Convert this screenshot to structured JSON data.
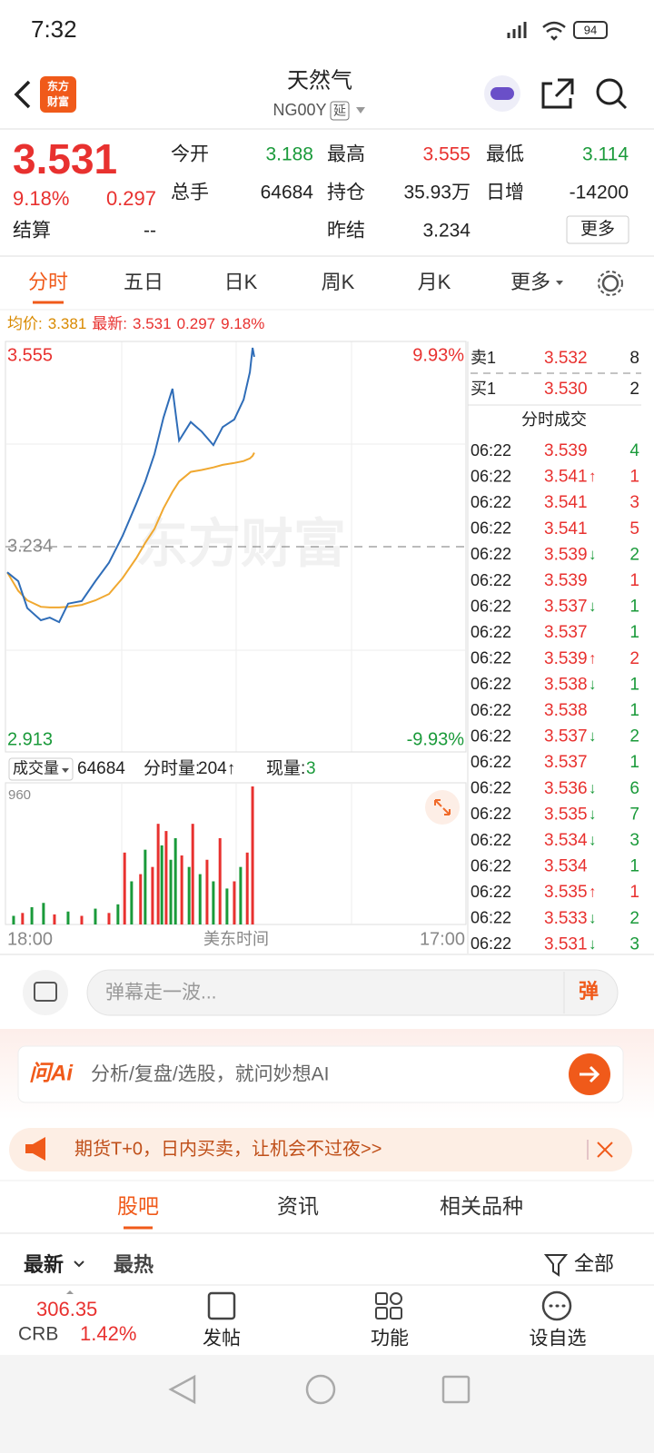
{
  "status_bar": {
    "time": "7:32",
    "battery": "94"
  },
  "header": {
    "logo_lines": [
      "东方",
      "财富"
    ],
    "title": "天然气",
    "code": "NG00Y",
    "badge": "延"
  },
  "quote": {
    "price": "3.531",
    "change_pct": "9.18%",
    "change": "0.297",
    "fields": [
      {
        "label": "今开",
        "value": "3.188",
        "color": "#1a9a3a"
      },
      {
        "label": "最高",
        "value": "3.555",
        "color": "#e8312f"
      },
      {
        "label": "最低",
        "value": "3.114",
        "color": "#1a9a3a"
      },
      {
        "label": "总手",
        "value": "64684",
        "color": "#222222"
      },
      {
        "label": "持仓",
        "value": "35.93万",
        "color": "#222222"
      },
      {
        "label": "日增",
        "value": "-14200",
        "color": "#222222"
      },
      {
        "label": "结算",
        "value": "--",
        "color": "#222222"
      },
      {
        "label": "昨结",
        "value": "3.234",
        "color": "#222222"
      }
    ],
    "more": "更多"
  },
  "tabs": [
    "分时",
    "五日",
    "日K",
    "周K",
    "月K",
    "更多"
  ],
  "info_line": {
    "avg_label": "均价:",
    "avg": "3.381",
    "latest_label": "最新:",
    "latest": "3.531",
    "change": "0.297",
    "change_pct": "9.18%"
  },
  "intraday": {
    "watermark": "东方财富",
    "ylim": [
      2.913,
      3.555
    ],
    "yticks": [
      3.555,
      3.234,
      2.913
    ],
    "top_pct": "9.93%",
    "bottom_pct": "-9.93%",
    "xlim": [
      0,
      1380
    ],
    "xlabels": [
      "18:00",
      "美东时间",
      "17:00"
    ],
    "x": [
      0,
      33,
      60,
      101,
      128,
      156,
      183,
      224,
      265,
      306,
      347,
      388,
      415,
      443,
      470,
      497,
      517,
      552,
      585,
      620,
      648,
      683,
      711,
      730,
      738,
      743
    ],
    "price": [
      3.194,
      3.18,
      3.138,
      3.119,
      3.123,
      3.116,
      3.145,
      3.149,
      3.18,
      3.209,
      3.251,
      3.301,
      3.336,
      3.379,
      3.436,
      3.481,
      3.4,
      3.429,
      3.414,
      3.393,
      3.421,
      3.433,
      3.464,
      3.507,
      3.545,
      3.531
    ],
    "avg": [
      3.194,
      3.165,
      3.15,
      3.14,
      3.139,
      3.139,
      3.14,
      3.143,
      3.15,
      3.16,
      3.185,
      3.216,
      3.24,
      3.262,
      3.294,
      3.32,
      3.336,
      3.351,
      3.354,
      3.358,
      3.362,
      3.365,
      3.368,
      3.372,
      3.376,
      3.381
    ],
    "price_color": "#2f6db8",
    "avg_color": "#f0a830"
  },
  "volume": {
    "label": "成交量",
    "total": "64684",
    "tick_volume_label": "分时量:",
    "tick_volume": "204↑",
    "current_label": "现量:",
    "current": "3",
    "ylim": [
      0,
      960
    ],
    "yticks": [
      960
    ],
    "x": [
      19,
      46,
      74,
      109,
      142,
      183,
      224,
      265,
      306,
      333,
      353,
      374,
      401,
      415,
      437,
      454,
      465,
      478,
      492,
      506,
      525,
      547,
      558,
      580,
      601,
      620,
      640,
      661,
      683,
      702,
      722,
      738
    ],
    "values": [
      60,
      80,
      120,
      150,
      70,
      90,
      60,
      110,
      80,
      140,
      500,
      300,
      350,
      520,
      400,
      700,
      550,
      650,
      450,
      600,
      480,
      400,
      700,
      350,
      450,
      300,
      600,
      250,
      300,
      400,
      500,
      960
    ],
    "colors": [
      "#1a9a3a",
      "#e8312f",
      "#1a9a3a",
      "#1a9a3a",
      "#e8312f",
      "#1a9a3a",
      "#e8312f",
      "#1a9a3a",
      "#e8312f",
      "#1a9a3a",
      "#e8312f",
      "#1a9a3a",
      "#e8312f",
      "#1a9a3a",
      "#e8312f",
      "#e8312f",
      "#1a9a3a",
      "#e8312f",
      "#1a9a3a",
      "#1a9a3a",
      "#e8312f",
      "#1a9a3a",
      "#e8312f",
      "#1a9a3a",
      "#e8312f",
      "#1a9a3a",
      "#e8312f",
      "#1a9a3a",
      "#e8312f",
      "#1a9a3a",
      "#e8312f",
      "#e8312f"
    ]
  },
  "order_book": {
    "ask": {
      "label": "卖1",
      "price": "3.532",
      "volume": "8"
    },
    "bid": {
      "label": "买1",
      "price": "3.530",
      "volume": "2"
    },
    "trades_title": "分时成交",
    "trades": [
      {
        "time": "06:22",
        "price": "3.539",
        "volume": "4",
        "color": "#1a9a3a"
      },
      {
        "time": "06:22",
        "price": "3.541",
        "arrow": "↑",
        "volume": "1",
        "color": "#e8312f"
      },
      {
        "time": "06:22",
        "price": "3.541",
        "volume": "3",
        "color": "#e8312f"
      },
      {
        "time": "06:22",
        "price": "3.541",
        "volume": "5",
        "color": "#e8312f"
      },
      {
        "time": "06:22",
        "price": "3.539",
        "arrow": "↓",
        "volume": "2",
        "color": "#1a9a3a"
      },
      {
        "time": "06:22",
        "price": "3.539",
        "volume": "1",
        "color": "#e8312f"
      },
      {
        "time": "06:22",
        "price": "3.537",
        "arrow": "↓",
        "volume": "1",
        "color": "#1a9a3a"
      },
      {
        "time": "06:22",
        "price": "3.537",
        "volume": "1",
        "color": "#1a9a3a"
      },
      {
        "time": "06:22",
        "price": "3.539",
        "arrow": "↑",
        "volume": "2",
        "color": "#e8312f"
      },
      {
        "time": "06:22",
        "price": "3.538",
        "arrow": "↓",
        "volume": "1",
        "color": "#1a9a3a"
      },
      {
        "time": "06:22",
        "price": "3.538",
        "volume": "1",
        "color": "#1a9a3a"
      },
      {
        "time": "06:22",
        "price": "3.537",
        "arrow": "↓",
        "volume": "2",
        "color": "#1a9a3a"
      },
      {
        "time": "06:22",
        "price": "3.537",
        "volume": "1",
        "color": "#1a9a3a"
      },
      {
        "time": "06:22",
        "price": "3.536",
        "arrow": "↓",
        "volume": "6",
        "color": "#1a9a3a"
      },
      {
        "time": "06:22",
        "price": "3.535",
        "arrow": "↓",
        "volume": "7",
        "color": "#1a9a3a"
      },
      {
        "time": "06:22",
        "price": "3.534",
        "arrow": "↓",
        "volume": "3",
        "color": "#1a9a3a"
      },
      {
        "time": "06:22",
        "price": "3.534",
        "volume": "1",
        "color": "#1a9a3a"
      },
      {
        "time": "06:22",
        "price": "3.535",
        "arrow": "↑",
        "volume": "1",
        "color": "#e8312f"
      },
      {
        "time": "06:22",
        "price": "3.533",
        "arrow": "↓",
        "volume": "2",
        "color": "#1a9a3a"
      },
      {
        "time": "06:22",
        "price": "3.531",
        "arrow": "↓",
        "volume": "3",
        "color": "#1a9a3a"
      }
    ]
  },
  "danmaku": {
    "placeholder": "弹幕走一波...",
    "button": "弹"
  },
  "ai": {
    "logo": "问Ai",
    "placeholder": "分析/复盘/选股，就问妙想AI"
  },
  "banner": {
    "text": "期货T+0，日内买卖，让机会不过夜>>"
  },
  "sections": [
    "股吧",
    "资讯",
    "相关品种"
  ],
  "filters": {
    "sort": [
      "最新",
      "最热"
    ],
    "filter": "全部"
  },
  "bottom_bar": {
    "index_value": "306.35",
    "index_name": "CRB",
    "index_change": "1.42%",
    "actions": [
      "发帖",
      "功能",
      "设自选"
    ]
  }
}
